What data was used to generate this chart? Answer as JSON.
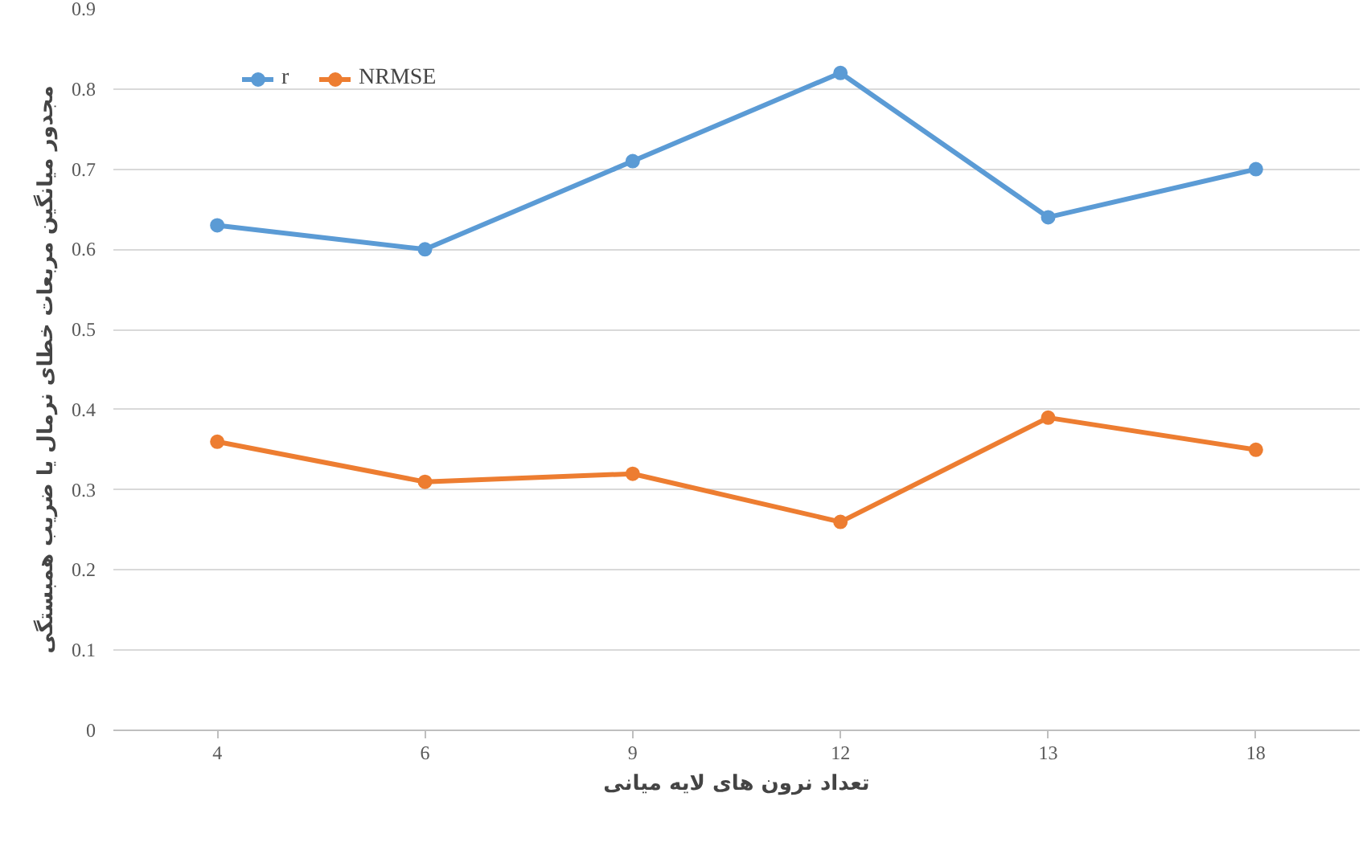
{
  "chart_data": {
    "type": "line",
    "xlabel": "تعداد نرون های لایه میانی",
    "ylabel": "مجدور میانگین مربعات خطای نرمال یا ضریب همبستگی",
    "categories": [
      "4",
      "6",
      "9",
      "12",
      "13",
      "18"
    ],
    "series": [
      {
        "name": "r",
        "color": "#5b9bd5",
        "values": [
          0.63,
          0.6,
          0.71,
          0.82,
          0.64,
          0.7
        ]
      },
      {
        "name": "NRMSE",
        "color": "#ed7d31",
        "values": [
          0.36,
          0.31,
          0.32,
          0.26,
          0.39,
          0.35
        ]
      }
    ],
    "ylim": [
      0,
      0.9
    ],
    "yticks": [
      0,
      0.1,
      0.2,
      0.3,
      0.4,
      0.5,
      0.6,
      0.7,
      0.8,
      0.9
    ],
    "grid": "y",
    "legend": "top left",
    "marker": "circle",
    "line_style": "solid"
  }
}
